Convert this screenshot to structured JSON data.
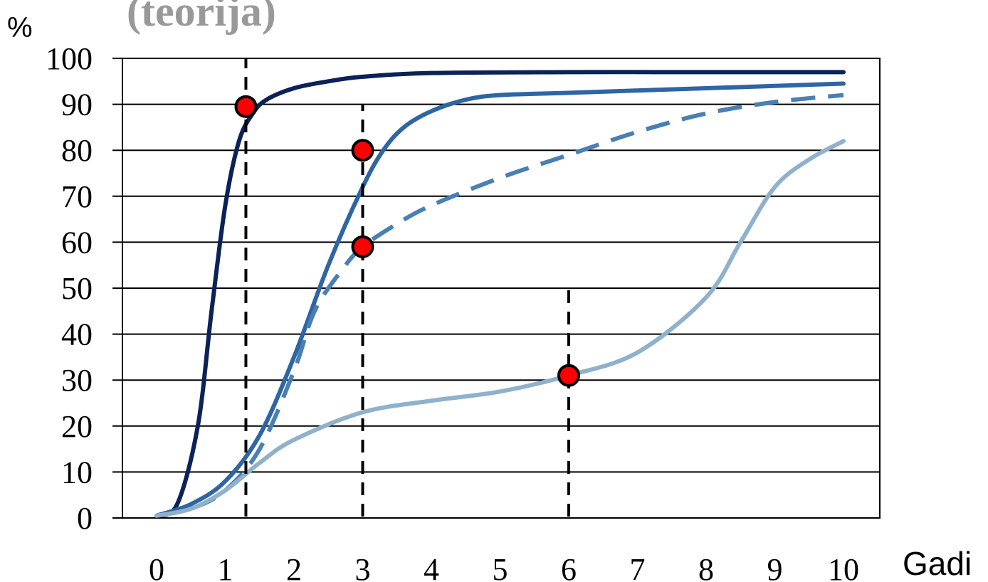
{
  "chart_data": {
    "type": "line",
    "title": "(teorija)",
    "ylabel": "%",
    "xlabel": "Gadi",
    "ylim": [
      0,
      100
    ],
    "yticks": [
      "0",
      "10",
      "20",
      "30",
      "40",
      "50",
      "60",
      "70",
      "80",
      "90",
      "100"
    ],
    "xticks": [
      "0",
      "1",
      "2",
      "3",
      "4",
      "5",
      "6",
      "7",
      "8",
      "9",
      "10"
    ],
    "grid": "horizontal",
    "colors": {
      "dark_navy": "#0a2258",
      "medium_blue": "#2e65a3",
      "dashed_blue": "#4a7fb5",
      "light_blue": "#8fb1cc",
      "marker": "#ff0000"
    },
    "series": [
      {
        "style": "solid",
        "color": "#0a2258",
        "points": [
          [
            0,
            0.5
          ],
          [
            0.3,
            3
          ],
          [
            0.6,
            20
          ],
          [
            0.8,
            45
          ],
          [
            1.0,
            68
          ],
          [
            1.2,
            82
          ],
          [
            1.4,
            88
          ],
          [
            1.6,
            91
          ],
          [
            2,
            93.5
          ],
          [
            2.5,
            95
          ],
          [
            3,
            96
          ],
          [
            4,
            96.8
          ],
          [
            6,
            97
          ],
          [
            8,
            97
          ],
          [
            10,
            97
          ]
        ]
      },
      {
        "style": "solid",
        "color": "#2e65a3",
        "points": [
          [
            0,
            0.5
          ],
          [
            0.5,
            3
          ],
          [
            1,
            8
          ],
          [
            1.5,
            18
          ],
          [
            2,
            35
          ],
          [
            2.5,
            55
          ],
          [
            3,
            72
          ],
          [
            3.3,
            80
          ],
          [
            3.6,
            85
          ],
          [
            4,
            88.5
          ],
          [
            4.5,
            91
          ],
          [
            5,
            92
          ],
          [
            6,
            92.5
          ],
          [
            8,
            93.5
          ],
          [
            10,
            94.5
          ]
        ]
      },
      {
        "style": "dashed",
        "color": "#4a7fb5",
        "points": [
          [
            0,
            0.5
          ],
          [
            0.5,
            2
          ],
          [
            1,
            6
          ],
          [
            1.5,
            15
          ],
          [
            2,
            32
          ],
          [
            2.3,
            45
          ],
          [
            2.7,
            54
          ],
          [
            3,
            59
          ],
          [
            3.5,
            64
          ],
          [
            4,
            68
          ],
          [
            5,
            74
          ],
          [
            6,
            79
          ],
          [
            7,
            84
          ],
          [
            8,
            88
          ],
          [
            9,
            90.5
          ],
          [
            10,
            92
          ]
        ]
      },
      {
        "style": "solid",
        "color": "#8fb1cc",
        "points": [
          [
            0,
            0.5
          ],
          [
            0.5,
            2
          ],
          [
            1,
            6
          ],
          [
            1.5,
            12
          ],
          [
            2,
            17
          ],
          [
            3,
            23
          ],
          [
            4,
            25.5
          ],
          [
            5,
            27.5
          ],
          [
            6,
            31
          ],
          [
            7,
            36
          ],
          [
            8,
            48
          ],
          [
            8.5,
            60
          ],
          [
            9,
            72
          ],
          [
            9.5,
            78
          ],
          [
            10,
            82
          ]
        ]
      }
    ],
    "marked_points": [
      {
        "x": 1.3,
        "y": 89.5
      },
      {
        "x": 3.0,
        "y": 80
      },
      {
        "x": 3.0,
        "y": 59
      },
      {
        "x": 6.0,
        "y": 31
      }
    ],
    "reference_lines": [
      {
        "x": 1.3,
        "y_from": 0,
        "y_to": 100
      },
      {
        "x": 3.0,
        "y_from": 0,
        "y_to": 90
      },
      {
        "x": 6.0,
        "y_from": 0,
        "y_to": 50
      }
    ]
  }
}
